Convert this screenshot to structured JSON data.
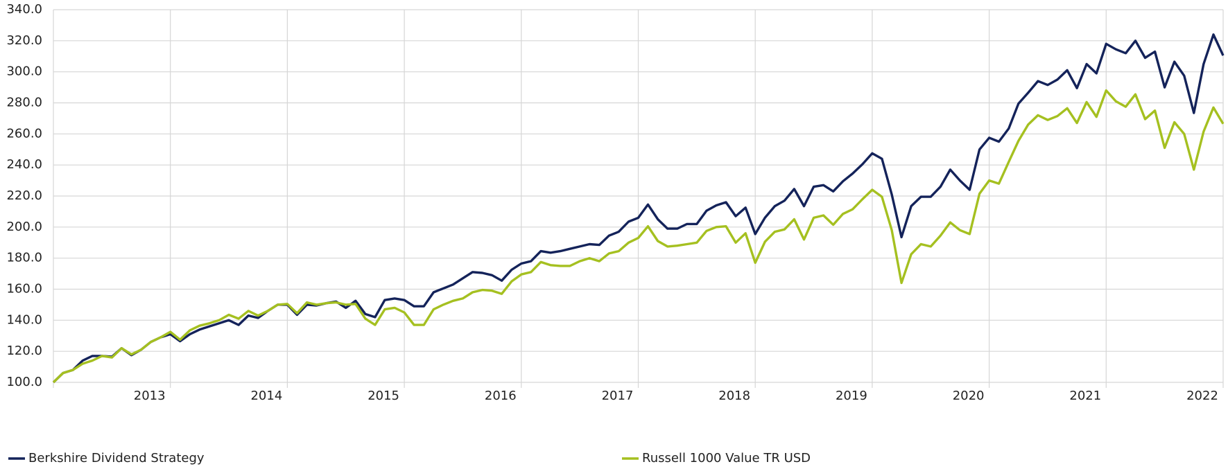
{
  "chart_data": {
    "type": "line",
    "x": [
      2012,
      2012.083,
      2012.167,
      2012.25,
      2012.333,
      2012.417,
      2012.5,
      2012.583,
      2012.667,
      2012.75,
      2012.833,
      2012.917,
      2013,
      2013.083,
      2013.167,
      2013.25,
      2013.333,
      2013.417,
      2013.5,
      2013.583,
      2013.667,
      2013.75,
      2013.833,
      2013.917,
      2014,
      2014.083,
      2014.167,
      2014.25,
      2014.333,
      2014.417,
      2014.5,
      2014.583,
      2014.667,
      2014.75,
      2014.833,
      2014.917,
      2015,
      2015.083,
      2015.167,
      2015.25,
      2015.333,
      2015.417,
      2015.5,
      2015.583,
      2015.667,
      2015.75,
      2015.833,
      2015.917,
      2016,
      2016.083,
      2016.167,
      2016.25,
      2016.333,
      2016.417,
      2016.5,
      2016.583,
      2016.667,
      2016.75,
      2016.833,
      2016.917,
      2017,
      2017.083,
      2017.167,
      2017.25,
      2017.333,
      2017.417,
      2017.5,
      2017.583,
      2017.667,
      2017.75,
      2017.833,
      2017.917,
      2018,
      2018.083,
      2018.167,
      2018.25,
      2018.333,
      2018.417,
      2018.5,
      2018.583,
      2018.667,
      2018.75,
      2018.833,
      2018.917,
      2019,
      2019.083,
      2019.167,
      2019.25,
      2019.333,
      2019.417,
      2019.5,
      2019.583,
      2019.667,
      2019.75,
      2019.833,
      2019.917,
      2020,
      2020.083,
      2020.167,
      2020.25,
      2020.333,
      2020.417,
      2020.5,
      2020.583,
      2020.667,
      2020.75,
      2020.833,
      2020.917,
      2021,
      2021.083,
      2021.167,
      2021.25,
      2021.333,
      2021.417,
      2021.5,
      2021.583,
      2021.667,
      2021.75,
      2021.833,
      2021.917,
      2022
    ],
    "series": [
      {
        "name": "Berkshire Dividend Strategy",
        "color": "#14235a",
        "values": [
          100,
          106,
          108,
          114,
          117,
          117,
          116.5,
          122,
          117.5,
          121,
          126,
          129,
          131,
          126.5,
          131,
          134,
          136,
          138,
          140,
          137,
          143,
          141.5,
          146,
          150,
          150,
          143.5,
          150,
          149.5,
          151,
          152,
          148,
          152.5,
          144,
          142,
          153,
          154,
          153,
          149,
          149,
          158,
          160.5,
          163,
          167,
          171,
          170.5,
          169,
          165.5,
          172.5,
          176.5,
          178,
          184.5,
          183.5,
          184.5,
          186,
          187.5,
          189,
          188.5,
          194.5,
          197,
          203.5,
          206,
          214.5,
          205,
          199,
          199,
          202,
          202,
          210.5,
          214,
          216,
          207,
          212.5,
          195.5,
          206,
          213.5,
          217,
          224.5,
          213.5,
          226,
          227,
          223,
          229.5,
          234.5,
          240.5,
          247.5,
          244,
          221,
          193.5,
          213.5,
          219.5,
          219.5,
          226,
          237,
          230,
          224,
          250,
          257.5,
          255,
          263.5,
          279.5,
          286.5,
          294,
          291.5,
          295,
          301,
          289.5,
          305,
          299,
          318,
          314.5,
          312,
          320,
          309,
          313,
          290,
          306.5,
          297.5,
          273.5,
          305,
          324,
          310.5
        ]
      },
      {
        "name": "Russell 1000 Value TR USD",
        "color": "#a5c020",
        "values": [
          100,
          106,
          108,
          112,
          114,
          117,
          116,
          122,
          118,
          121,
          126,
          129,
          132.5,
          127.5,
          133.5,
          136.5,
          138,
          140,
          143.5,
          141,
          146,
          143,
          146,
          150,
          150.5,
          144.5,
          151.5,
          150,
          151,
          151.5,
          150,
          150.5,
          141,
          137,
          147,
          148,
          145,
          137,
          137,
          147,
          150,
          152.5,
          154,
          158,
          159.5,
          159,
          157,
          165,
          169.5,
          171,
          177.5,
          175.5,
          175,
          175,
          178,
          180,
          178,
          183,
          184.5,
          190,
          193,
          200.5,
          191,
          187.5,
          188,
          189,
          190,
          197.5,
          200,
          200.5,
          190,
          196,
          177,
          190.5,
          197,
          198.5,
          205,
          192,
          206,
          207.5,
          201.5,
          208.5,
          211.5,
          218,
          224,
          219.5,
          198,
          164,
          182.5,
          189,
          187.5,
          194.5,
          203,
          198,
          195.5,
          221.5,
          230,
          228,
          242,
          255.5,
          266,
          272,
          269,
          271.5,
          276.5,
          267,
          280.5,
          271,
          288,
          281,
          277.5,
          285.5,
          269.5,
          275,
          251,
          267.5,
          260,
          237,
          261.5,
          277,
          266.5
        ]
      }
    ],
    "xlim": [
      2012,
      2022
    ],
    "xticks": [
      2013,
      2014,
      2015,
      2016,
      2017,
      2018,
      2019,
      2020,
      2021,
      2022
    ],
    "ylim": [
      100,
      340
    ],
    "yticks": [
      {
        "value": 100,
        "label": "100.0"
      },
      {
        "value": 120,
        "label": "120.0"
      },
      {
        "value": 140,
        "label": "140.0"
      },
      {
        "value": 160,
        "label": "160.0"
      },
      {
        "value": 180,
        "label": "180.0"
      },
      {
        "value": 200,
        "label": "200.0"
      },
      {
        "value": 220,
        "label": "220.0"
      },
      {
        "value": 240,
        "label": "240.0"
      },
      {
        "value": 260,
        "label": "260.0"
      },
      {
        "value": 280,
        "label": "280.0"
      },
      {
        "value": 300,
        "label": "300.0"
      },
      {
        "value": 320,
        "label": "320.0"
      },
      {
        "value": 340,
        "label": "340.0"
      }
    ],
    "grid": true,
    "legend": "bottom"
  }
}
